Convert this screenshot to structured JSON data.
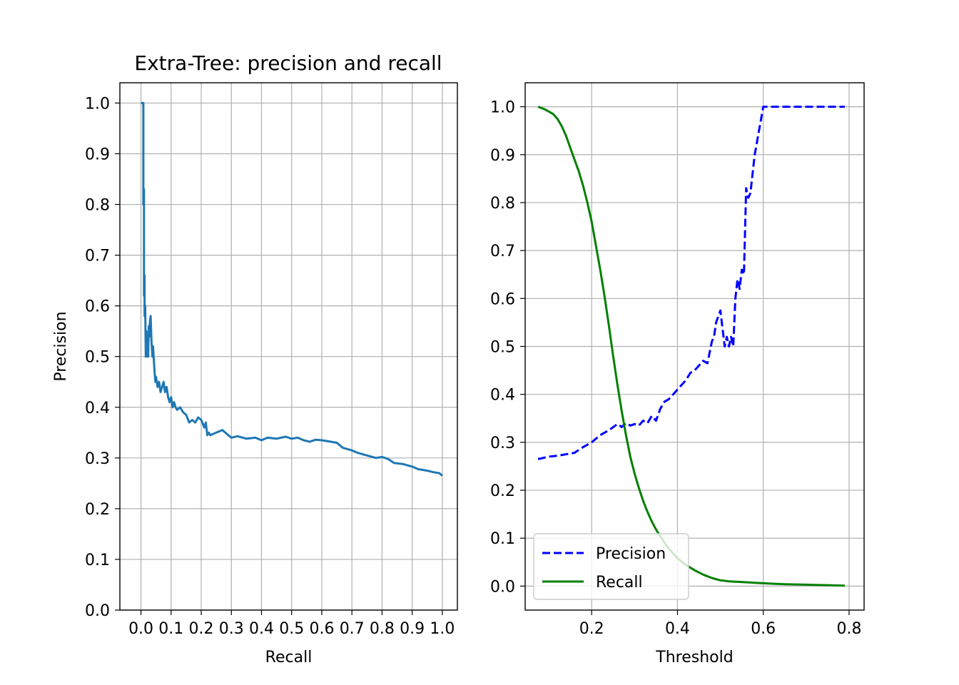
{
  "chart_data": [
    {
      "type": "line",
      "title": "Extra-Tree: precision and recall",
      "xlabel": "Recall",
      "ylabel": "Precision",
      "xlim": [
        -0.07,
        1.05
      ],
      "ylim": [
        0.0,
        1.04
      ],
      "xticks": [
        0.0,
        0.1,
        0.2,
        0.3,
        0.4,
        0.5,
        0.6,
        0.7,
        0.8,
        0.9,
        1.0
      ],
      "xtick_labels": [
        "0.0",
        "0.1",
        "0.2",
        "0.3",
        "0.4",
        "0.5",
        "0.6",
        "0.7",
        "0.8",
        "0.9",
        "1.0"
      ],
      "yticks": [
        0.0,
        0.1,
        0.2,
        0.3,
        0.4,
        0.5,
        0.6,
        0.7,
        0.8,
        0.9,
        1.0
      ],
      "ytick_labels": [
        "0.0",
        "0.1",
        "0.2",
        "0.3",
        "0.4",
        "0.5",
        "0.6",
        "0.7",
        "0.8",
        "0.9",
        "1.0"
      ],
      "grid": true,
      "series": [
        {
          "color": "#1f77b4",
          "x": [
            0.0,
            0.005,
            0.008,
            0.008,
            0.01,
            0.01,
            0.012,
            0.012,
            0.014,
            0.016,
            0.018,
            0.02,
            0.022,
            0.024,
            0.026,
            0.028,
            0.03,
            0.032,
            0.035,
            0.038,
            0.04,
            0.042,
            0.045,
            0.048,
            0.05,
            0.055,
            0.06,
            0.065,
            0.07,
            0.075,
            0.08,
            0.085,
            0.09,
            0.095,
            0.1,
            0.105,
            0.11,
            0.115,
            0.12,
            0.13,
            0.14,
            0.15,
            0.16,
            0.17,
            0.18,
            0.19,
            0.2,
            0.21,
            0.215,
            0.22,
            0.225,
            0.23,
            0.25,
            0.27,
            0.29,
            0.3,
            0.32,
            0.35,
            0.38,
            0.4,
            0.42,
            0.45,
            0.48,
            0.5,
            0.52,
            0.54,
            0.56,
            0.58,
            0.6,
            0.62,
            0.65,
            0.67,
            0.7,
            0.72,
            0.75,
            0.78,
            0.8,
            0.82,
            0.84,
            0.87,
            0.9,
            0.92,
            0.95,
            0.97,
            0.99,
            1.0
          ],
          "y": [
            1.0,
            1.0,
            1.0,
            0.8,
            0.83,
            0.62,
            0.66,
            0.58,
            0.6,
            0.5,
            0.55,
            0.5,
            0.52,
            0.5,
            0.56,
            0.54,
            0.57,
            0.58,
            0.53,
            0.5,
            0.52,
            0.5,
            0.47,
            0.45,
            0.46,
            0.44,
            0.45,
            0.43,
            0.44,
            0.45,
            0.43,
            0.44,
            0.42,
            0.41,
            0.42,
            0.4,
            0.41,
            0.4,
            0.395,
            0.4,
            0.39,
            0.385,
            0.37,
            0.375,
            0.37,
            0.38,
            0.375,
            0.36,
            0.37,
            0.345,
            0.35,
            0.345,
            0.35,
            0.355,
            0.345,
            0.34,
            0.343,
            0.338,
            0.34,
            0.335,
            0.34,
            0.338,
            0.342,
            0.338,
            0.34,
            0.335,
            0.332,
            0.336,
            0.335,
            0.333,
            0.33,
            0.32,
            0.315,
            0.31,
            0.305,
            0.3,
            0.302,
            0.298,
            0.29,
            0.288,
            0.283,
            0.278,
            0.275,
            0.272,
            0.27,
            0.265
          ]
        }
      ]
    },
    {
      "type": "line",
      "xlabel": "Threshold",
      "ylabel": "",
      "xlim": [
        0.045,
        0.835
      ],
      "ylim": [
        -0.05,
        1.05
      ],
      "xticks": [
        0.2,
        0.4,
        0.6,
        0.8
      ],
      "xtick_labels": [
        "0.2",
        "0.4",
        "0.6",
        "0.8"
      ],
      "yticks": [
        0.0,
        0.1,
        0.2,
        0.3,
        0.4,
        0.5,
        0.6,
        0.7,
        0.8,
        0.9,
        1.0
      ],
      "ytick_labels": [
        "0.0",
        "0.1",
        "0.2",
        "0.3",
        "0.4",
        "0.5",
        "0.6",
        "0.7",
        "0.8",
        "0.9",
        "1.0"
      ],
      "grid": true,
      "legend": {
        "position": "lower-left"
      },
      "series": [
        {
          "name": "Precision",
          "color": "#0000ff",
          "style": "dashed",
          "x": [
            0.075,
            0.1,
            0.12,
            0.14,
            0.16,
            0.18,
            0.2,
            0.22,
            0.24,
            0.26,
            0.27,
            0.28,
            0.29,
            0.3,
            0.31,
            0.32,
            0.33,
            0.34,
            0.35,
            0.36,
            0.37,
            0.38,
            0.39,
            0.4,
            0.41,
            0.42,
            0.43,
            0.44,
            0.45,
            0.46,
            0.47,
            0.48,
            0.485,
            0.49,
            0.5,
            0.51,
            0.515,
            0.52,
            0.525,
            0.53,
            0.535,
            0.54,
            0.545,
            0.55,
            0.555,
            0.56,
            0.565,
            0.57,
            0.58,
            0.59,
            0.6,
            0.61,
            0.65,
            0.7,
            0.75,
            0.79
          ],
          "y": [
            0.265,
            0.27,
            0.272,
            0.275,
            0.278,
            0.29,
            0.3,
            0.315,
            0.325,
            0.338,
            0.332,
            0.34,
            0.335,
            0.338,
            0.335,
            0.345,
            0.34,
            0.355,
            0.345,
            0.37,
            0.385,
            0.39,
            0.4,
            0.41,
            0.42,
            0.43,
            0.445,
            0.45,
            0.46,
            0.47,
            0.465,
            0.51,
            0.52,
            0.55,
            0.575,
            0.5,
            0.52,
            0.5,
            0.52,
            0.5,
            0.6,
            0.64,
            0.62,
            0.66,
            0.65,
            0.83,
            0.81,
            0.82,
            0.9,
            0.95,
            1.0,
            1.0,
            1.0,
            1.0,
            1.0,
            1.0
          ]
        },
        {
          "name": "Recall",
          "color": "#008000",
          "style": "solid",
          "x": [
            0.075,
            0.09,
            0.1,
            0.11,
            0.12,
            0.13,
            0.14,
            0.15,
            0.16,
            0.17,
            0.18,
            0.19,
            0.2,
            0.21,
            0.22,
            0.23,
            0.24,
            0.25,
            0.26,
            0.27,
            0.28,
            0.29,
            0.3,
            0.31,
            0.32,
            0.33,
            0.34,
            0.35,
            0.36,
            0.37,
            0.38,
            0.39,
            0.4,
            0.42,
            0.44,
            0.46,
            0.48,
            0.5,
            0.52,
            0.54,
            0.56,
            0.58,
            0.6,
            0.62,
            0.65,
            0.7,
            0.75,
            0.79
          ],
          "y": [
            1.0,
            0.995,
            0.99,
            0.985,
            0.975,
            0.96,
            0.94,
            0.915,
            0.89,
            0.865,
            0.835,
            0.8,
            0.76,
            0.71,
            0.66,
            0.605,
            0.545,
            0.48,
            0.42,
            0.365,
            0.315,
            0.27,
            0.235,
            0.205,
            0.178,
            0.155,
            0.135,
            0.118,
            0.104,
            0.09,
            0.078,
            0.068,
            0.058,
            0.044,
            0.033,
            0.024,
            0.017,
            0.012,
            0.01,
            0.009,
            0.008,
            0.007,
            0.006,
            0.005,
            0.004,
            0.003,
            0.002,
            0.001
          ]
        }
      ]
    }
  ]
}
